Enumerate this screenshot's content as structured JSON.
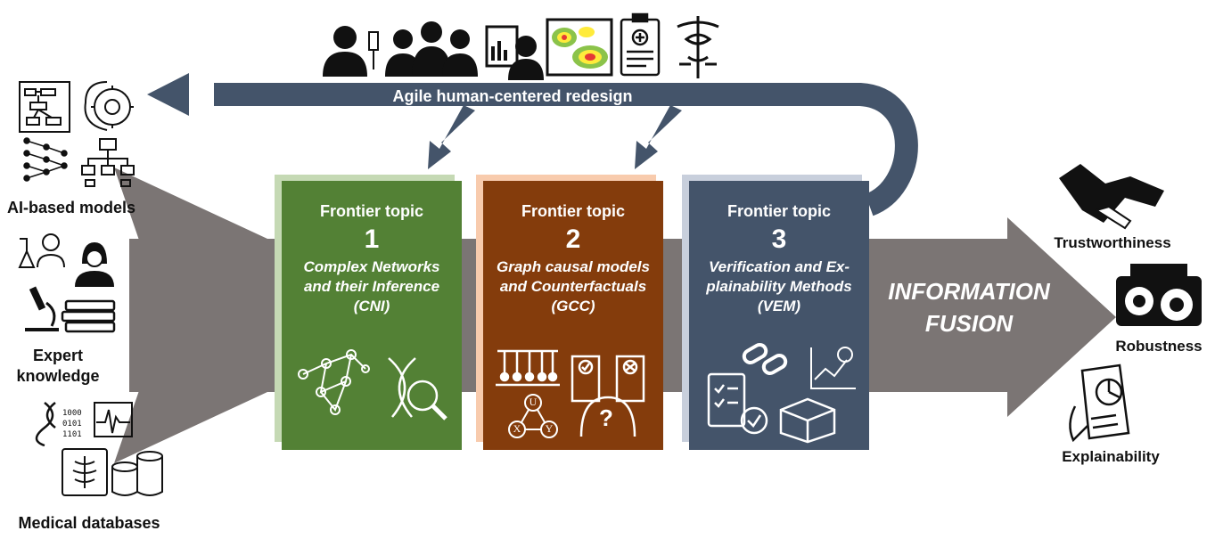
{
  "feedback_loop": {
    "label": "Agile human-centered redesign"
  },
  "inputs": {
    "ai_models": "AI-based models",
    "expert_knowledge_line1": "Expert",
    "expert_knowledge_line2": "knowledge",
    "medical_databases": "Medical databases"
  },
  "topics": [
    {
      "heading": "Frontier topic",
      "number": "1",
      "line1": "Complex Networks",
      "line2": "and their Inference",
      "line3": "(CNI)",
      "color": "#538135"
    },
    {
      "heading": "Frontier topic",
      "number": "2",
      "line1": "Graph causal models",
      "line2": "and Counterfactuals",
      "line3": "(GCC)",
      "color": "#843c0c"
    },
    {
      "heading": "Frontier topic",
      "number": "3",
      "line1": "Verification and Ex-",
      "line2": "plainability Methods",
      "line3": "(VEM)",
      "color": "#44546a"
    }
  ],
  "fusion": {
    "line1": "INFORMATION",
    "line2": "FUSION"
  },
  "outcomes": {
    "trust": "Trustworthiness",
    "robust": "Robustness",
    "explain": "Explainability"
  },
  "causal_nodes": {
    "u": "U",
    "x": "X",
    "y": "Y"
  },
  "colors": {
    "arrow": "#7b7574",
    "loop": "#44546a",
    "green": "#538135",
    "brown": "#843c0c",
    "slate": "#44546a"
  },
  "icons": [
    "doctor-icon",
    "team-icon",
    "radiologist-icon",
    "heatmap-icon",
    "clipboard-icon",
    "caduceus-icon",
    "flowchart-icon",
    "brain-gear-icon",
    "neural-net-icon",
    "hierarchy-icon",
    "scientist-icon",
    "nurse-icon",
    "microscope-icon",
    "books-icon",
    "dna-binary-icon",
    "ecg-icon",
    "xray-icon",
    "database-icon",
    "handshake-icon",
    "engine-icon",
    "chart-hand-icon"
  ]
}
